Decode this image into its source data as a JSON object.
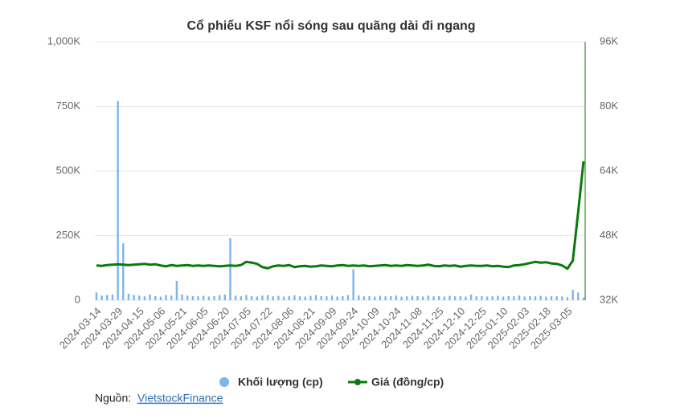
{
  "chart_data": {
    "type": "combo",
    "title": "Cổ phiếu KSF nổi sóng sau quãng dài đi ngang",
    "categories": [
      "2024-03-14",
      null,
      null,
      null,
      "2024-03-29",
      null,
      null,
      null,
      "2024-04-15",
      null,
      null,
      null,
      "2024-05-06",
      null,
      null,
      null,
      "2024-05-21",
      null,
      null,
      null,
      "2024-06-05",
      null,
      null,
      null,
      "2024-06-20",
      null,
      null,
      null,
      "2024-07-05",
      null,
      null,
      null,
      "2024-07-22",
      null,
      null,
      null,
      "2024-08-06",
      null,
      null,
      null,
      "2024-08-21",
      null,
      null,
      null,
      "2024-09-09",
      null,
      null,
      null,
      "2024-09-24",
      null,
      null,
      null,
      "2024-10-09",
      null,
      null,
      null,
      "2024-10-24",
      null,
      null,
      null,
      "2024-11-08",
      null,
      null,
      null,
      "2024-11-25",
      null,
      null,
      null,
      "2024-12-10",
      null,
      null,
      null,
      "2024-12-25",
      null,
      null,
      null,
      "2025-01-10",
      null,
      null,
      null,
      "2025-02-03",
      null,
      null,
      null,
      "2025-02-18",
      null,
      null,
      null,
      "2025-03-05",
      null,
      null,
      null
    ],
    "series": [
      {
        "name": "Khối lượng (cp)",
        "type": "bar",
        "color": "#7cb5ec",
        "values": [
          30000,
          18000,
          20000,
          22000,
          770000,
          220000,
          25000,
          20000,
          18000,
          15000,
          22000,
          16000,
          14000,
          20000,
          18000,
          75000,
          22000,
          18000,
          16000,
          15000,
          17000,
          14000,
          16000,
          20000,
          22000,
          240000,
          18000,
          15000,
          20000,
          16000,
          14000,
          18000,
          20000,
          15000,
          17000,
          14000,
          16000,
          19000,
          15000,
          14000,
          17000,
          20000,
          16000,
          15000,
          18000,
          14000,
          16000,
          20000,
          120000,
          18000,
          15000,
          16000,
          14000,
          17000,
          15000,
          16000,
          18000,
          14000,
          15000,
          17000,
          16000,
          14000,
          18000,
          15000,
          16000,
          14000,
          17000,
          15000,
          16000,
          14000,
          22000,
          15000,
          16000,
          14000,
          15000,
          17000,
          14000,
          16000,
          15000,
          18000,
          14000,
          16000,
          15000,
          17000,
          14000,
          16000,
          15000,
          14000,
          12000,
          40000,
          30000,
          10000
        ]
      },
      {
        "name": "Giá (đồng/cp)",
        "type": "line",
        "axis": "y2",
        "color": "#0b7a0b",
        "values": [
          40600,
          40500,
          40700,
          40800,
          40900,
          40800,
          40700,
          40800,
          40900,
          41000,
          40800,
          40900,
          40600,
          40400,
          40700,
          40500,
          40600,
          40700,
          40500,
          40600,
          40500,
          40600,
          40500,
          40400,
          40500,
          40600,
          40500,
          40700,
          41500,
          41300,
          41000,
          40200,
          39900,
          40400,
          40600,
          40500,
          40700,
          40200,
          40400,
          40500,
          40300,
          40400,
          40600,
          40500,
          40400,
          40600,
          40700,
          40500,
          40600,
          40500,
          40600,
          40400,
          40500,
          40600,
          40700,
          40500,
          40600,
          40500,
          40700,
          40600,
          40500,
          40600,
          40800,
          40500,
          40400,
          40600,
          40500,
          40600,
          40300,
          40500,
          40600,
          40500,
          40500,
          40600,
          40400,
          40500,
          40300,
          40200,
          40600,
          40700,
          40900,
          41200,
          41500,
          41300,
          41400,
          41100,
          41000,
          40600,
          39800,
          41800,
          53800,
          66400
        ]
      }
    ],
    "ylim": [
      0,
      1000000
    ],
    "yticks": [
      {
        "value": 0,
        "label": "0"
      },
      {
        "value": 250000,
        "label": "250K"
      },
      {
        "value": 500000,
        "label": "500K"
      },
      {
        "value": 750000,
        "label": "750K"
      },
      {
        "value": 1000000,
        "label": "1,000K"
      }
    ],
    "y2lim": [
      32000,
      96000
    ],
    "y2ticks": [
      {
        "value": 32000,
        "label": "32K"
      },
      {
        "value": 48000,
        "label": "48K"
      },
      {
        "value": 64000,
        "label": "64K"
      },
      {
        "value": 80000,
        "label": "80K"
      },
      {
        "value": 96000,
        "label": "96K"
      }
    ],
    "grid": true,
    "legend": "bottom",
    "source_label": "Nguồn:",
    "source": "VietstockFinance"
  }
}
